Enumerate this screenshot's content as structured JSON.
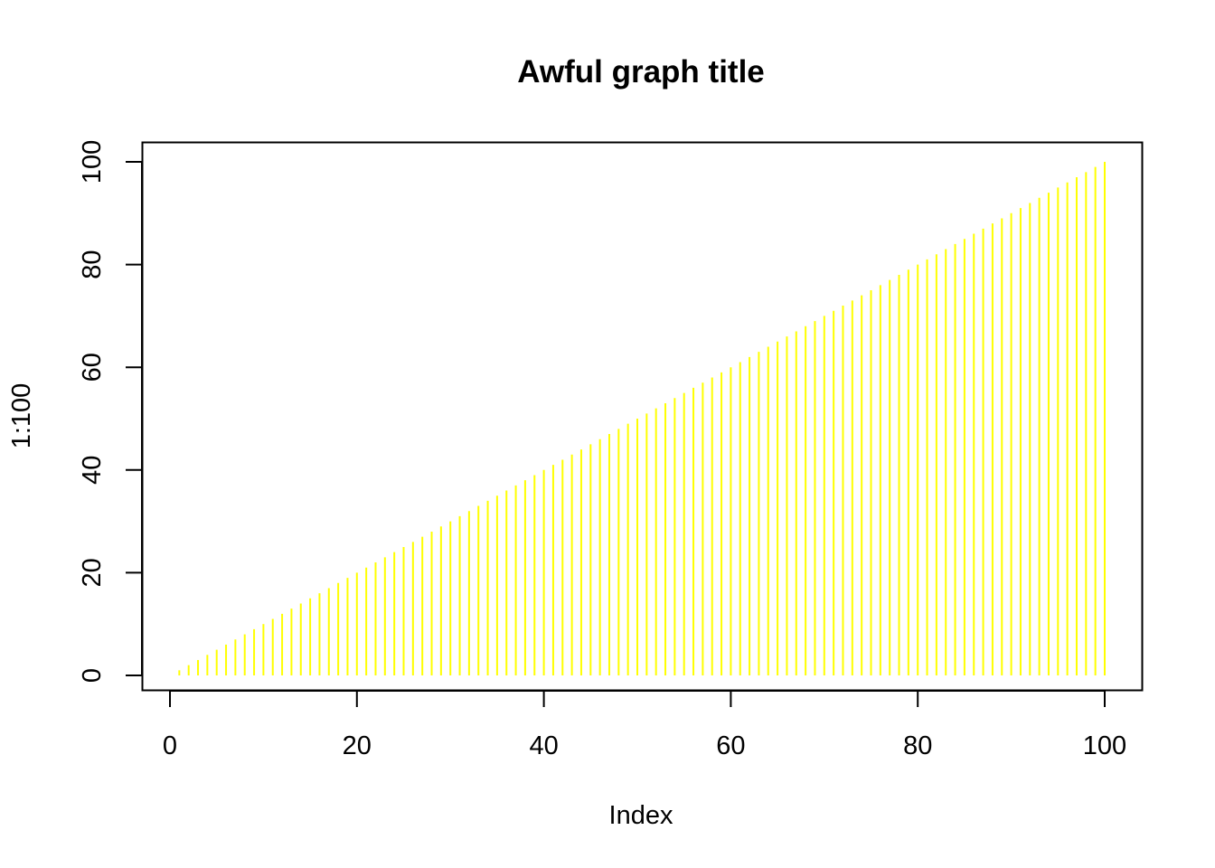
{
  "chart_data": {
    "type": "bar",
    "plot_type": "h",
    "title": "Awful graph title",
    "xlabel": "Index",
    "ylabel": "1:100",
    "xlim": [
      1,
      100
    ],
    "ylim": [
      0,
      100
    ],
    "x_ticks": [
      0,
      20,
      40,
      60,
      80,
      100
    ],
    "y_ticks": [
      0,
      20,
      40,
      60,
      80,
      100
    ],
    "series": [
      {
        "x_start": 1,
        "x_end": 100,
        "values": "y = x for x in 1..100",
        "color": "#FFFF00"
      }
    ],
    "grid": false,
    "legend": "none"
  },
  "colors": {
    "bar": "#FFFF00",
    "axis": "#000000",
    "background": "#FFFFFF"
  }
}
